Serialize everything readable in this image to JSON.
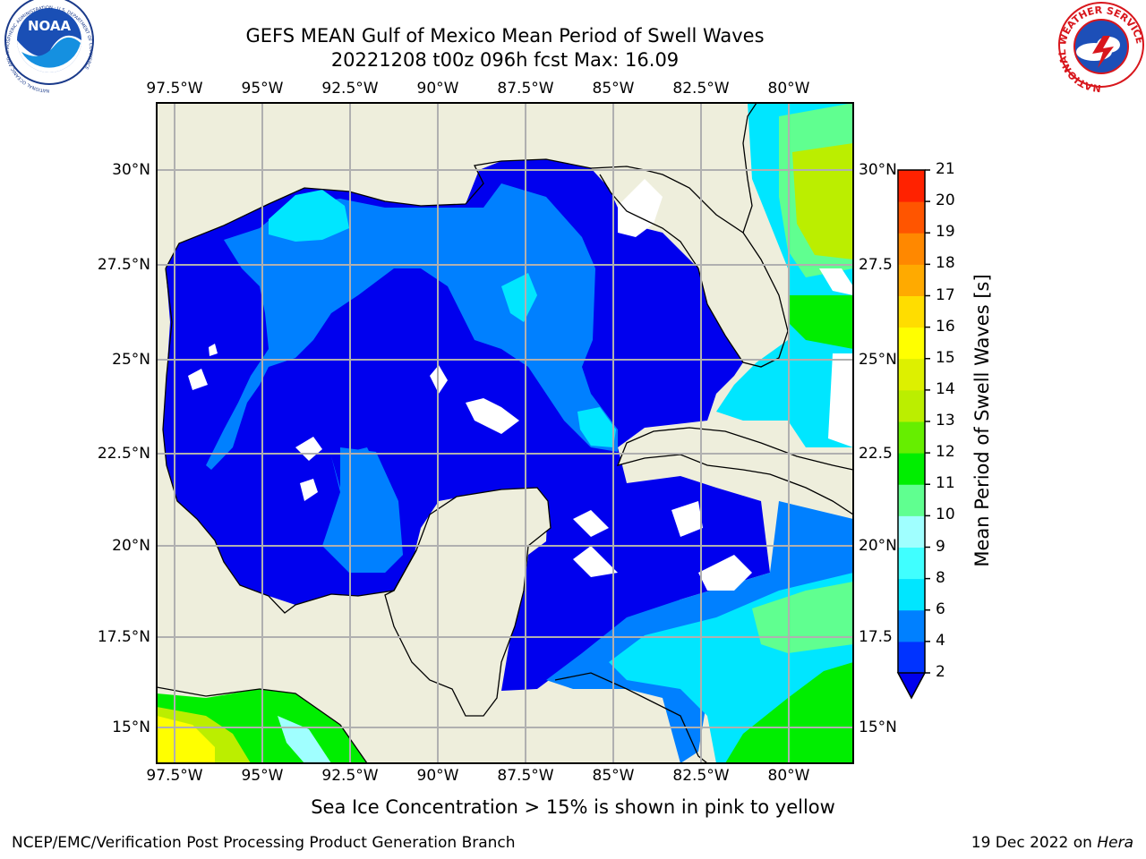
{
  "header": {
    "title_line1": "GEFS MEAN Gulf of Mexico Mean Period of Swell Waves",
    "title_line2": "20221208 t00z 096h fcst   Max: 16.09"
  },
  "logos": {
    "noaa": {
      "text": "NOAA",
      "ring_text": "NATIONAL OCEANIC AND ATMOSPHERIC ADMINISTRATION · U.S. DEPARTMENT OF COMMERCE"
    },
    "nws": {
      "ring_text": "NATIONAL WEATHER SERVICE"
    }
  },
  "map": {
    "lon_labels": [
      "97.5°W",
      "95°W",
      "92.5°W",
      "90°W",
      "87.5°W",
      "85°W",
      "82.5°W",
      "80°W"
    ],
    "lat_labels_left": [
      "30°N",
      "27.5°N",
      "25°N",
      "22.5°N",
      "20°N",
      "17.5°N",
      "15°N"
    ],
    "lat_labels_right": [
      "30°N",
      "27.5",
      "25°N",
      "22.5",
      "20°N",
      "17.5",
      "15°N"
    ],
    "colors": {
      "land": "#eeeedc",
      "grid": "#b0b0b0",
      "coast": "#000000"
    }
  },
  "colorbar": {
    "label": "Mean Period of Swell Waves [s]",
    "ticks": [
      "2",
      "4",
      "6",
      "8",
      "9",
      "10",
      "11",
      "12",
      "13",
      "14",
      "15",
      "16",
      "17",
      "18",
      "19",
      "20",
      "21"
    ],
    "colors": [
      "#0033ff",
      "#0080ff",
      "#00e6ff",
      "#40ffff",
      "#a0ffff",
      "#60ff90",
      "#00ee00",
      "#66ee00",
      "#bbee00",
      "#ddf000",
      "#ffff00",
      "#ffdd00",
      "#ffaa00",
      "#ff8800",
      "#ff5500",
      "#ff2200",
      "#ff0000"
    ],
    "under_color": "#0000ee"
  },
  "footer": {
    "note": "Sea Ice Concentration > 15% is shown in pink to yellow",
    "left": "NCEP/EMC/Verification Post Processing Product Generation Branch",
    "right_date": "19 Dec 2022 on ",
    "right_host": "Hera"
  }
}
